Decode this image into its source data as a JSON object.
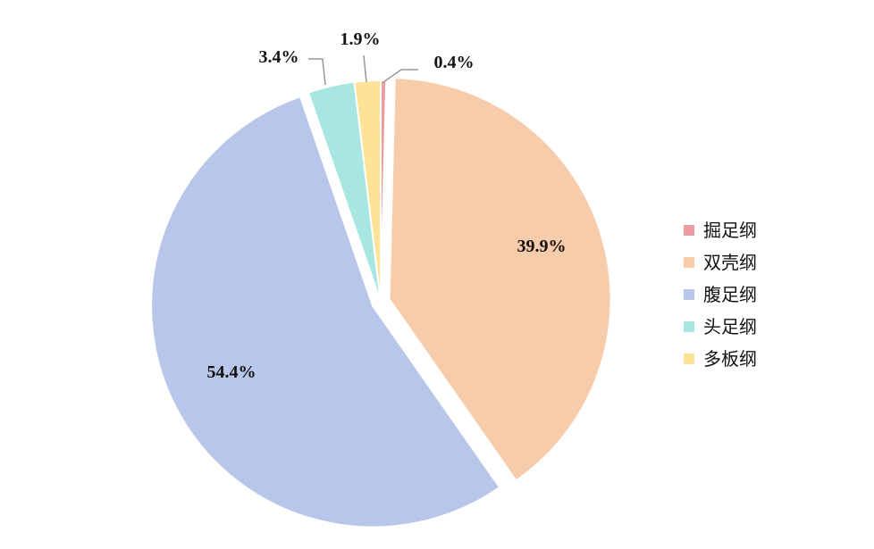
{
  "chart_data": {
    "type": "pie",
    "title": "",
    "categories": [
      "掘足纲",
      "双壳纲",
      "腹足纲",
      "头足纲",
      "多板纲"
    ],
    "values": [
      0.4,
      39.9,
      54.4,
      3.4,
      1.9
    ],
    "labels": [
      "0.4%",
      "39.9%",
      "54.4%",
      "3.4%",
      "1.9%"
    ],
    "colors": [
      "#EE9CA1",
      "#F7CCAB",
      "#B8C7E9",
      "#A8E6E1",
      "#FCE396"
    ],
    "start_angle_deg": 0,
    "direction": "clockwise",
    "exploded": [
      "双壳纲",
      "腹足纲"
    ],
    "legend_position": "right"
  }
}
